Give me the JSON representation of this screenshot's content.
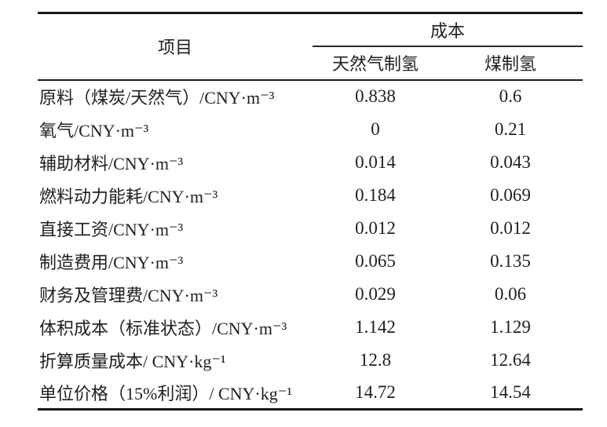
{
  "table": {
    "header": {
      "item_col": "项目",
      "cost_group": "成本",
      "col_natural_gas": "天然气制氢",
      "col_coal": "煤制氢"
    },
    "rows": [
      {
        "label": "原料（煤炭/天然气）/CNY·m⁻³",
        "natural_gas": "0.838",
        "coal": "0.6"
      },
      {
        "label": "氧气/CNY·m⁻³",
        "natural_gas": "0",
        "coal": "0.21"
      },
      {
        "label": "辅助材料/CNY·m⁻³",
        "natural_gas": "0.014",
        "coal": "0.043"
      },
      {
        "label": "燃料动力能耗/CNY·m⁻³",
        "natural_gas": "0.184",
        "coal": "0.069"
      },
      {
        "label": "直接工资/CNY·m⁻³",
        "natural_gas": "0.012",
        "coal": "0.012"
      },
      {
        "label": "制造费用/CNY·m⁻³",
        "natural_gas": "0.065",
        "coal": "0.135"
      },
      {
        "label": "财务及管理费/CNY·m⁻³",
        "natural_gas": "0.029",
        "coal": "0.06"
      },
      {
        "label": "体积成本（标准状态）/CNY·m⁻³",
        "natural_gas": "1.142",
        "coal": "1.129"
      },
      {
        "label": "折算质量成本/ CNY·kg⁻¹",
        "natural_gas": "12.8",
        "coal": "12.64"
      },
      {
        "label": "单位价格（15%利润）/ CNY·kg⁻¹",
        "natural_gas": "14.72",
        "coal": "14.54"
      }
    ],
    "colors": {
      "text": "#1f1f1f",
      "rule": "#161616",
      "background": "#ffffff"
    }
  }
}
